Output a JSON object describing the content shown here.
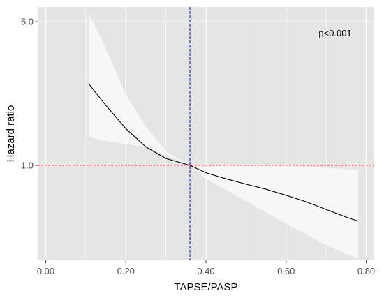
{
  "chart_data": {
    "type": "line",
    "title": "",
    "xlabel": "TAPSE/PASP",
    "ylabel": "Hazard ratio",
    "xlim": [
      -0.02,
      0.82
    ],
    "ylim": [
      0.345,
      5.9
    ],
    "y_scale": "log",
    "x_ticks": [
      0.0,
      0.2,
      0.4,
      0.6,
      0.8
    ],
    "x_tick_labels": [
      "0.00",
      "0.20",
      "0.40",
      "0.60",
      "0.80"
    ],
    "y_ticks": [
      1.0,
      5.0
    ],
    "y_tick_labels": [
      "1.0",
      "5.0"
    ],
    "grid": true,
    "annotation": "p<0.001",
    "reference_lines": {
      "hazard_ratio": 1.0,
      "tapse_pasp": 0.36
    },
    "series": [
      {
        "x": [
          0.107,
          0.15,
          0.2,
          0.25,
          0.3,
          0.36,
          0.4,
          0.45,
          0.5,
          0.55,
          0.6,
          0.65,
          0.7,
          0.75,
          0.78
        ],
        "y": [
          2.5,
          1.96,
          1.51,
          1.23,
          1.08,
          1.0,
          0.92,
          0.86,
          0.81,
          0.765,
          0.715,
          0.665,
          0.61,
          0.56,
          0.535
        ]
      }
    ],
    "confidence_band": {
      "x": [
        0.107,
        0.15,
        0.2,
        0.25,
        0.3,
        0.36,
        0.4,
        0.45,
        0.5,
        0.55,
        0.6,
        0.65,
        0.7,
        0.75,
        0.78
      ],
      "lower": [
        1.38,
        1.31,
        1.27,
        1.23,
        1.12,
        1.0,
        0.86,
        0.76,
        0.67,
        0.59,
        0.52,
        0.46,
        0.41,
        0.37,
        0.355
      ],
      "upper": [
        5.5,
        3.72,
        2.2,
        1.55,
        1.17,
        1.0,
        0.98,
        1.0,
        1.01,
        1.01,
        1.0,
        0.98,
        0.97,
        0.96,
        0.95
      ]
    },
    "colors": {
      "panel": "#e5e5e5",
      "grid": "#ffffff",
      "band": "#f7f7f7",
      "line": "#000000",
      "hline": "#ff0000",
      "vline": "#0000cd"
    }
  }
}
